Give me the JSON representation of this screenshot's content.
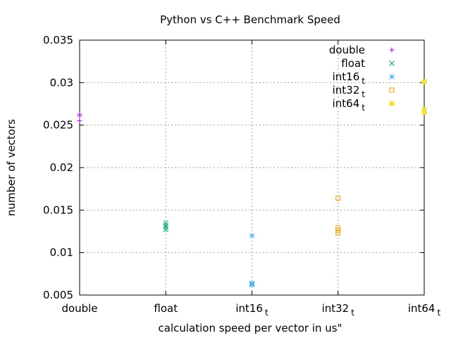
{
  "chart_data": {
    "type": "scatter",
    "title": "Python vs C++ Benchmark Speed",
    "xlabel": "calculation speed per vector in us\"",
    "ylabel": "number of vectors",
    "categories": [
      {
        "text": "double",
        "sub": ""
      },
      {
        "text": "float",
        "sub": ""
      },
      {
        "text": "int16",
        "sub": "t"
      },
      {
        "text": "int32",
        "sub": "t"
      },
      {
        "text": "int64",
        "sub": "t"
      }
    ],
    "xlim": [
      0,
      4
    ],
    "ylim": [
      0.005,
      0.035
    ],
    "yticks": [
      "0.035",
      "0.03",
      "0.025",
      "0.02",
      "0.015",
      "0.01",
      "0.005"
    ],
    "ytick_values": [
      0.035,
      0.03,
      0.025,
      0.02,
      0.015,
      0.01,
      0.005
    ],
    "grid": true,
    "legend_position": "top-right",
    "series": [
      {
        "name": "double",
        "sub": "",
        "marker": "plus",
        "color": "#9400d3",
        "points": [
          [
            0,
            0.0263
          ],
          [
            0,
            0.0261
          ],
          [
            0,
            0.0255
          ]
        ]
      },
      {
        "name": "float",
        "sub": "",
        "marker": "cross",
        "color": "#009e73",
        "points": [
          [
            1,
            0.0135
          ],
          [
            1,
            0.0132
          ],
          [
            1,
            0.013
          ],
          [
            1,
            0.0127
          ]
        ]
      },
      {
        "name": "int16",
        "sub": "t",
        "marker": "star",
        "color": "#56b4e9",
        "points": [
          [
            2,
            0.012
          ],
          [
            2,
            0.0064
          ],
          [
            2,
            0.0063
          ],
          [
            2,
            0.0062
          ]
        ]
      },
      {
        "name": "int32",
        "sub": "t",
        "marker": "box",
        "color": "#e69f00",
        "points": [
          [
            3,
            0.0164
          ],
          [
            3,
            0.0129
          ],
          [
            3,
            0.0126
          ],
          [
            3,
            0.0123
          ]
        ]
      },
      {
        "name": "int64",
        "sub": "t",
        "marker": "boxfill",
        "color": "#f0e442",
        "points": [
          [
            4,
            0.0301
          ],
          [
            4,
            0.0268
          ],
          [
            4,
            0.0265
          ]
        ]
      }
    ]
  }
}
